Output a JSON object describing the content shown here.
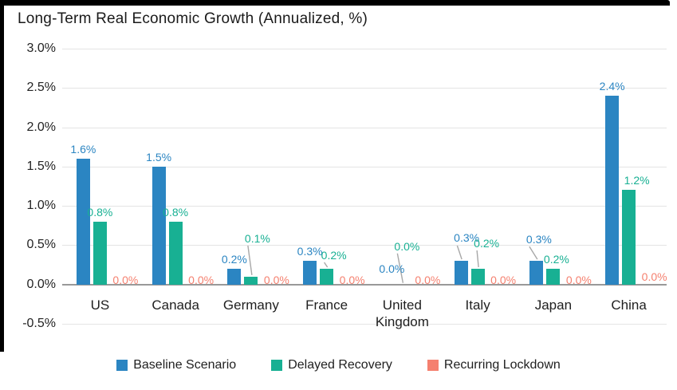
{
  "window": {
    "background": "#ffffff",
    "frame_border_color": "#000000"
  },
  "chart_data": {
    "type": "bar",
    "title": "Long-Term Real Economic Growth (Annualized, %)",
    "categories": [
      "US",
      "Canada",
      "Germany",
      "France",
      "United Kingdom",
      "Italy",
      "Japan",
      "China"
    ],
    "y_axis": {
      "min": -0.5,
      "max": 3.0,
      "step": 0.5,
      "format": "percent",
      "tick_labels": [
        "3.0%",
        "2.5%",
        "2.0%",
        "1.5%",
        "1.0%",
        "0.5%",
        "0.0%",
        "-0.5%"
      ]
    },
    "grid": true,
    "data_labels": true,
    "legend_position": "bottom",
    "colors": {
      "gridline": "#e4e4e4",
      "axis_line": "#999999",
      "leader_line": "#a8a8a8",
      "text": "#1f1f1f"
    },
    "series": [
      {
        "name": "Baseline Scenario",
        "color": "#2b85c2",
        "points": [
          {
            "v": 1.6,
            "label": "1.6%"
          },
          {
            "v": 1.5,
            "label": "1.5%"
          },
          {
            "v": 0.2,
            "label": "0.2%"
          },
          {
            "v": 0.3,
            "label": "0.3%"
          },
          {
            "v": 0.0,
            "label": "0.0%",
            "dx": 8,
            "raise": 8
          },
          {
            "v": 0.3,
            "label": "0.3%",
            "dx": 7,
            "raise": 17,
            "leader": true
          },
          {
            "v": 0.3,
            "label": "0.3%",
            "dx": 3,
            "raise": 15,
            "leader": true
          },
          {
            "v": 2.4,
            "label": "2.4%"
          }
        ]
      },
      {
        "name": "Delayed Recovery",
        "color": "#18b093",
        "points": [
          {
            "v": 0.8,
            "label": "0.8%"
          },
          {
            "v": 0.8,
            "label": "0.8%"
          },
          {
            "v": 0.1,
            "label": "0.1%",
            "dx": 8,
            "raise": 36,
            "leader": true
          },
          {
            "v": 0.2,
            "label": "0.2%",
            "dx": 9,
            "raise": 5,
            "leader": true
          },
          {
            "v": 0.0,
            "label": "0.0%",
            "dx": 6,
            "raise": 36,
            "leader": true
          },
          {
            "v": 0.2,
            "label": "0.2%",
            "dx": 11,
            "raise": 20,
            "leader": true
          },
          {
            "v": 0.2,
            "label": "0.2%",
            "dx": 4
          },
          {
            "v": 1.2,
            "label": "1.2%",
            "dx": 10
          }
        ]
      },
      {
        "name": "Recurring Lockdown",
        "color": "#f5806f",
        "points": [
          {
            "v": 0.0,
            "label": "0.0%",
            "dx": 11,
            "dy": 6
          },
          {
            "v": 0.0,
            "label": "0.0%",
            "dx": 11,
            "dy": 6
          },
          {
            "v": 0.0,
            "label": "0.0%",
            "dx": 11,
            "dy": 6
          },
          {
            "v": 0.0,
            "label": "0.0%",
            "dx": 11,
            "dy": 6
          },
          {
            "v": 0.0,
            "label": "0.0%",
            "dx": 11,
            "dy": 6
          },
          {
            "v": 0.0,
            "label": "0.0%",
            "dx": 11,
            "dy": 6
          },
          {
            "v": 0.0,
            "label": "0.0%",
            "dx": 11,
            "dy": 6
          },
          {
            "v": 0.0,
            "label": "0.0%",
            "dx": 11,
            "dy": 2
          }
        ]
      }
    ]
  }
}
